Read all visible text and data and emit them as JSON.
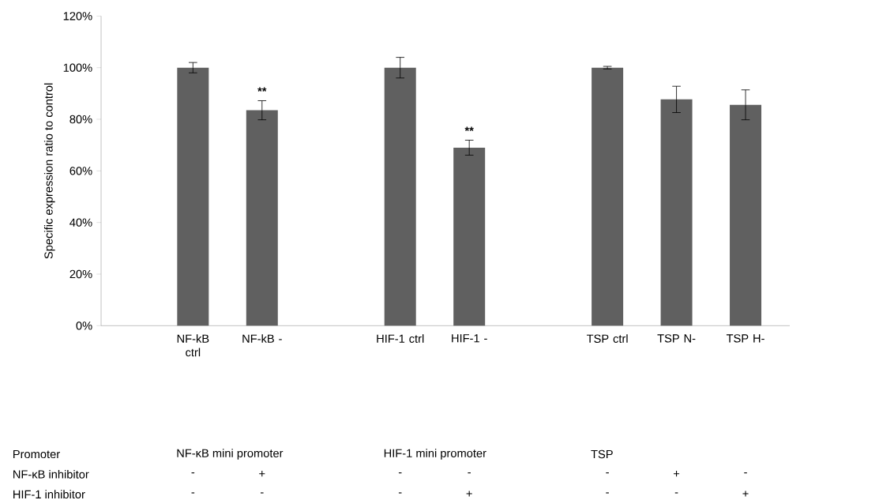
{
  "chart_data": {
    "type": "bar",
    "ylabel": "Specific expression ratio to control",
    "categories": [
      "NF-kB ctrl",
      "NF-kB -",
      null,
      "HIF-1 ctrl",
      "HIF-1 -",
      null,
      "TSP ctrl",
      "TSP N-",
      "TSP H-"
    ],
    "values": [
      100,
      83.5,
      null,
      100,
      69,
      null,
      100,
      87.7,
      85.6
    ],
    "errors": [
      2,
      3.7,
      null,
      4,
      2.9,
      null,
      0.5,
      5.1,
      5.8
    ],
    "color": "#606060",
    "ylim": [
      0,
      120
    ],
    "yticks": [
      {
        "value": 0,
        "label": "0%"
      },
      {
        "value": 20,
        "label": "20%"
      },
      {
        "value": 40,
        "label": "40%"
      },
      {
        "value": 60,
        "label": "60%"
      },
      {
        "value": 80,
        "label": "80%"
      },
      {
        "value": 100,
        "label": "100%"
      },
      {
        "value": 120,
        "label": "120%"
      }
    ],
    "annotations": [
      "**",
      "**",
      "Promoter",
      "NF-κB mini promoter",
      "HIF-1 mini promoter",
      "TSP",
      "NF-κB inhibitor",
      "-",
      "+",
      "-",
      "-",
      "-",
      "+",
      "-",
      "HIF-1 inhibitor",
      "-",
      "-",
      "-",
      "+",
      "-",
      "-",
      "+"
    ]
  }
}
